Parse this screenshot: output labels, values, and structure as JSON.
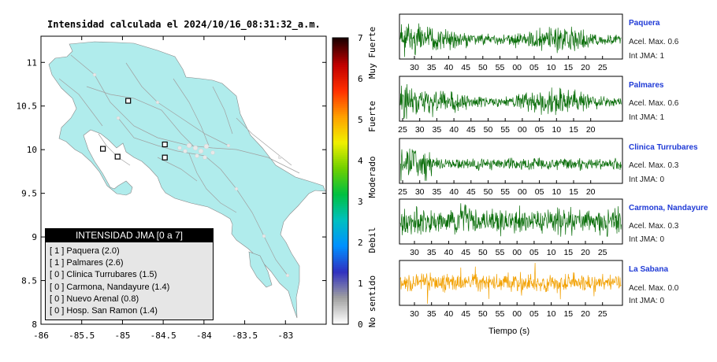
{
  "map": {
    "title": "Intensidad calculada el 2024/10/16_08:31:32_a.m.",
    "x_ticks": [
      "-86",
      "-85.5",
      "-85",
      "-84.5",
      "-84",
      "-83.5",
      "-83"
    ],
    "y_ticks": [
      "11",
      "10.5",
      "10",
      "9.5",
      "9",
      "8.5",
      "8"
    ],
    "colors": {
      "land": "#b0ecec",
      "roads": "#9a9a9a",
      "frame": "#000000"
    }
  },
  "colorbar": {
    "ticks": [
      "0",
      "1",
      "2",
      "3",
      "4",
      "5",
      "6",
      "7"
    ],
    "labels": [
      "No sentido",
      "Debil",
      "Moderado",
      "Fuerte",
      "Muy Fuerte"
    ],
    "colors": [
      "#ffffff",
      "#a0a0a0",
      "#3030c0",
      "#0090ff",
      "#00c0c0",
      "#00c040",
      "#70d000",
      "#f0f000",
      "#ffa000",
      "#ff3000",
      "#c00000",
      "#200000"
    ]
  },
  "legend": {
    "title": "INTENSIDAD JMA [0 a 7]",
    "items": [
      "[ 1 ]  Paquera (2.0)",
      "[ 1 ]  Palmares (2.6)",
      "[ 0 ]  Clinica Turrubares (1.5)",
      "[ 0 ]  Carmona, Nandayure (1.4)",
      "[ 0 ]  Nuevo Arenal (0.8)",
      "[ 0 ]  Hosp. San Ramon (1.4)"
    ]
  },
  "stations": [
    {
      "name": "Paquera",
      "acc": "Acel. Max. 0.6",
      "int": "Int JMA: 1",
      "color": "#0a6e0a",
      "ticks": [
        "30",
        "35",
        "40",
        "45",
        "50",
        "55",
        "00",
        "05",
        "10",
        "15",
        "20",
        "25"
      ]
    },
    {
      "name": "Palmares",
      "acc": "Acel. Max. 0.6",
      "int": "Int JMA: 1",
      "color": "#0a6e0a",
      "ticks": [
        "25",
        "30",
        "35",
        "40",
        "45",
        "50",
        "55",
        "00",
        "05",
        "10",
        "15",
        "20"
      ]
    },
    {
      "name": "Clinica Turrubares",
      "acc": "Acel. Max. 0.3",
      "int": "Int JMA: 0",
      "color": "#0a6e0a",
      "ticks": [
        "25",
        "30",
        "35",
        "40",
        "45",
        "50",
        "55",
        "00",
        "05",
        "10",
        "15",
        "20"
      ]
    },
    {
      "name": "Carmona, Nandayure",
      "acc": "Acel. Max. 0.3",
      "int": "Int JMA: 0",
      "color": "#0a6e0a",
      "ticks": [
        "30",
        "35",
        "40",
        "45",
        "50",
        "55",
        "00",
        "05",
        "10",
        "15",
        "20",
        "25"
      ]
    },
    {
      "name": "La Sabana",
      "acc": "Acel. Max. 0.0",
      "int": "Int JMA: 0",
      "color": "#f2a000",
      "ticks": [
        "30",
        "35",
        "40",
        "45",
        "50",
        "55",
        "00",
        "05",
        "10",
        "15",
        "20",
        "25"
      ]
    }
  ],
  "traces_xlabel": "Tiempo (s)",
  "chart_data": [
    {
      "type": "scatter",
      "title": "Intensidad calculada el 2024/10/16_08:31:32_a.m.",
      "xlim": [
        -86,
        -82.5
      ],
      "ylim": [
        8,
        11.3
      ],
      "station_markers": [
        {
          "x": -84.93,
          "y": 10.56
        },
        {
          "x": -85.24,
          "y": 10.01
        },
        {
          "x": -85.06,
          "y": 9.92
        },
        {
          "x": -84.48,
          "y": 10.06
        },
        {
          "x": -84.48,
          "y": 9.91
        }
      ]
    },
    {
      "type": "line",
      "series": [
        {
          "name": "Paquera",
          "peak": 0.6
        },
        {
          "name": "Palmares",
          "peak": 0.6
        },
        {
          "name": "Clinica Turrubares",
          "peak": 0.3
        },
        {
          "name": "Carmona, Nandayure",
          "peak": 0.3
        },
        {
          "name": "La Sabana",
          "peak": 0.0
        }
      ],
      "xlabel": "Tiempo (s)"
    }
  ]
}
